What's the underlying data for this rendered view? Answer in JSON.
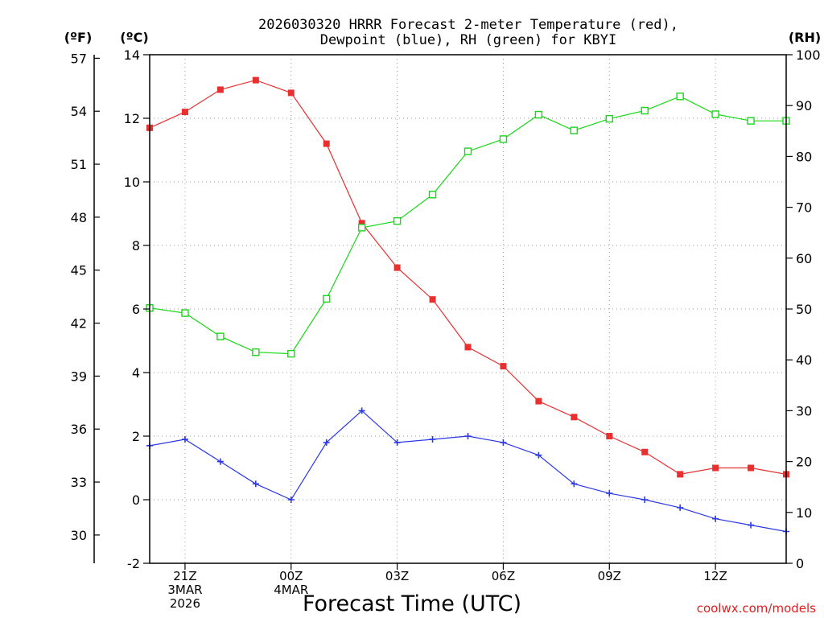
{
  "chart_data": {
    "type": "line",
    "title_line1": "2026030320 HRRR Forecast 2-meter Temperature (red),",
    "title_line2": "Dewpoint (blue), RH (green) for KBYI",
    "unit_f": "(ºF)",
    "unit_c": "(ºC)",
    "unit_rh": "(RH)",
    "xlabel": "Forecast Time (UTC)",
    "credit": "coolwx.com/models",
    "x_hours": [
      -1,
      0,
      1,
      2,
      3,
      4,
      5,
      6,
      7,
      8,
      9,
      10,
      11,
      12,
      13,
      14,
      15,
      16,
      17
    ],
    "x_ticks": [
      {
        "hour": 0,
        "lines": [
          "21Z",
          "3MAR",
          "2026"
        ]
      },
      {
        "hour": 3,
        "lines": [
          "00Z",
          "4MAR"
        ]
      },
      {
        "hour": 6,
        "lines": [
          "03Z"
        ]
      },
      {
        "hour": 9,
        "lines": [
          "06Z"
        ]
      },
      {
        "hour": 12,
        "lines": [
          "09Z"
        ]
      },
      {
        "hour": 15,
        "lines": [
          "12Z"
        ]
      }
    ],
    "xlim": [
      -1,
      17
    ],
    "ylim_c": [
      -2,
      14
    ],
    "ylim_rh": [
      0,
      100
    ],
    "y_ticks_c": [
      -2,
      0,
      2,
      4,
      6,
      8,
      10,
      12,
      14
    ],
    "y_ticks_f": [
      30,
      33,
      36,
      39,
      42,
      45,
      48,
      51,
      54,
      57
    ],
    "y_ticks_rh": [
      0,
      10,
      20,
      30,
      40,
      50,
      60,
      70,
      80,
      90,
      100
    ],
    "grid": true,
    "series": [
      {
        "name": "Temperature",
        "axis": "c",
        "color": "#e83030",
        "marker": "filled-square",
        "values": [
          11.7,
          12.2,
          12.9,
          13.2,
          12.8,
          11.2,
          8.7,
          7.3,
          6.3,
          4.8,
          4.2,
          3.1,
          2.6,
          2.0,
          1.5,
          0.8,
          1.0,
          1.0,
          0.8
        ]
      },
      {
        "name": "Dewpoint",
        "axis": "c",
        "color": "#2a38e8",
        "marker": "plus",
        "values": [
          1.7,
          1.9,
          1.2,
          0.5,
          0.0,
          1.8,
          2.8,
          1.8,
          1.9,
          2.0,
          1.8,
          1.4,
          0.5,
          0.2,
          0.0,
          -0.25,
          -0.6,
          -0.8,
          -1.0
        ]
      },
      {
        "name": "RH",
        "axis": "rh",
        "color": "#18d818",
        "marker": "open-square",
        "values": [
          50.2,
          49.2,
          44.6,
          41.5,
          41.2,
          52.0,
          66.0,
          67.3,
          72.5,
          81.0,
          83.4,
          88.2,
          85.1,
          87.4,
          89.0,
          91.8,
          88.3,
          87.0,
          87.0
        ]
      }
    ]
  }
}
